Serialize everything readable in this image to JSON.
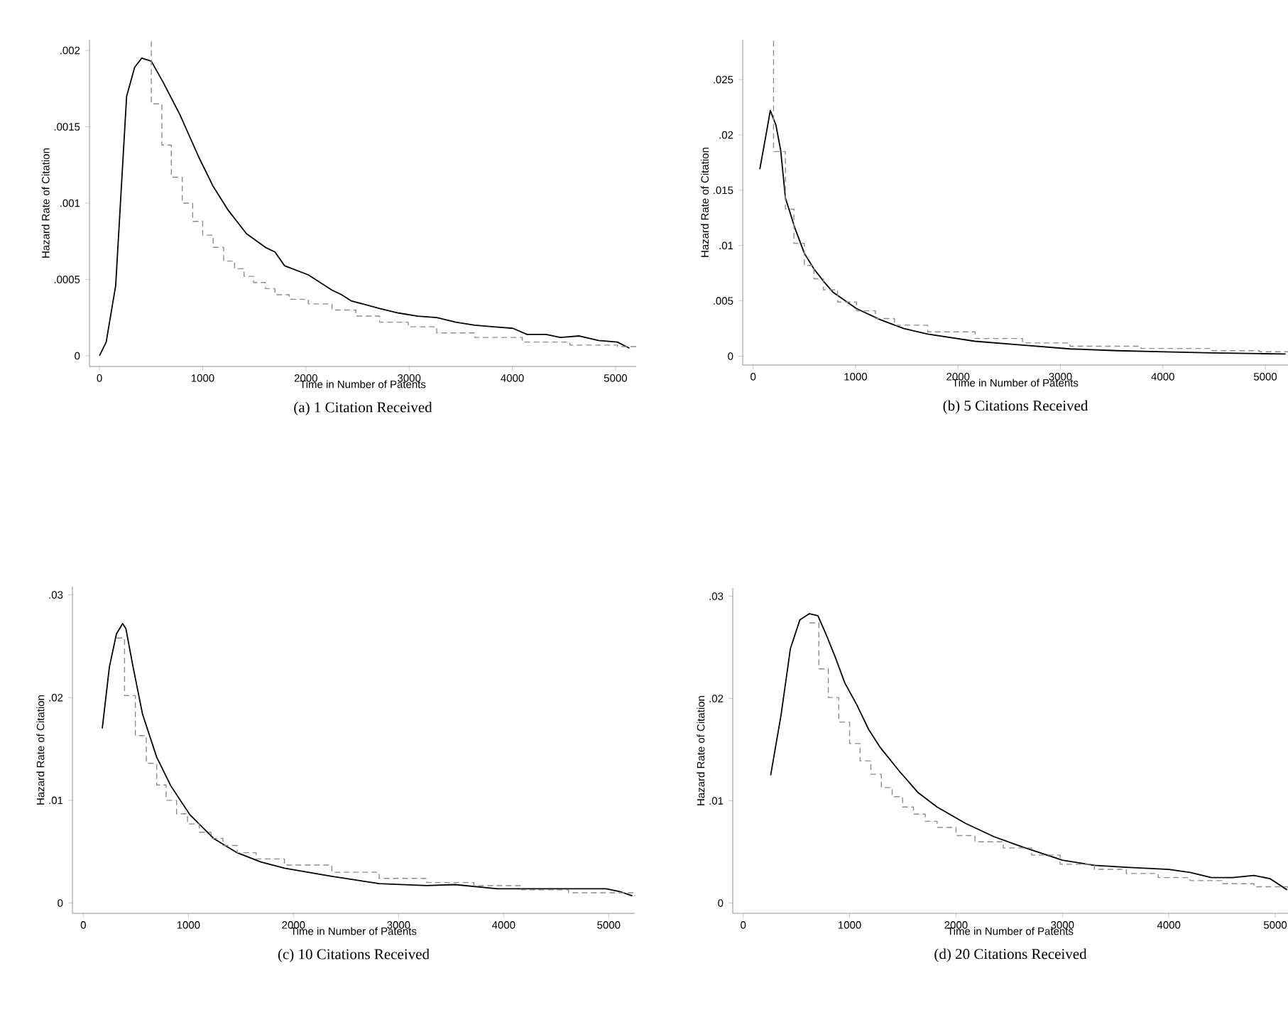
{
  "chart_data": [
    {
      "type": "line",
      "title": "(a) 1 Citation Received",
      "xlabel": "Time in Number of Patents",
      "ylabel": "Hazard Rate of Citation",
      "xlim": [
        -97,
        5200
      ],
      "xticks": [
        0,
        1000,
        2000,
        3000,
        4000,
        5000
      ],
      "ylim": [
        -7e-05,
        0.00207
      ],
      "yticks": [
        {
          "value": 0,
          "label": "0"
        },
        {
          "value": 0.0005,
          "label": ".0005"
        },
        {
          "value": 0.001,
          "label": ".001"
        },
        {
          "value": 0.0015,
          "label": ".0015"
        },
        {
          "value": 0.002,
          "label": ".002"
        }
      ],
      "series": [
        {
          "type": "line",
          "color": "#000000",
          "line_style": "solid",
          "x": [
            0,
            65,
            157,
            263,
            341,
            410,
            502,
            618,
            779,
            963,
            1101,
            1240,
            1424,
            1608,
            1700,
            1793,
            2023,
            2253,
            2346,
            2438,
            2714,
            2899,
            3083,
            3267,
            3452,
            3636,
            3820,
            4005,
            4143,
            4327,
            4465,
            4650,
            4834,
            5018,
            5134
          ],
          "values": [
            0,
            9e-05,
            0.00046,
            0.0017,
            0.00189,
            0.00195,
            0.00193,
            0.00179,
            0.00158,
            0.0013,
            0.00111,
            0.00096,
            0.0008,
            0.00071,
            0.00068,
            0.00059,
            0.00053,
            0.00043,
            0.0004,
            0.00036,
            0.00031,
            0.00028,
            0.00026,
            0.00025,
            0.00022,
            0.0002,
            0.00019,
            0.00018,
            0.00014,
            0.00014,
            0.00012,
            0.00013,
            0.0001,
            9e-05,
            5e-05
          ]
        },
        {
          "type": "step",
          "color": "#8c8c8c",
          "line_style": "dashed",
          "x": [
            502,
            502,
            604,
            696,
            802,
            903,
            1000,
            1101,
            1203,
            1309,
            1401,
            1493,
            1608,
            1700,
            1839,
            2023,
            2253,
            2484,
            2714,
            2991,
            3267,
            3636,
            4097,
            4558,
            5018,
            5200
          ],
          "values": [
            0.00206,
            0.00165,
            0.00138,
            0.00117,
            0.001,
            0.00088,
            0.00079,
            0.00071,
            0.00062,
            0.00057,
            0.00052,
            0.00048,
            0.00044,
            0.0004,
            0.00037,
            0.00034,
            0.0003,
            0.00026,
            0.00022,
            0.00019,
            0.00015,
            0.00012,
            9e-05,
            7e-05,
            6e-05,
            6e-05
          ]
        }
      ]
    },
    {
      "type": "line",
      "title": "(b) 5 Citations Received",
      "xlabel": "Time in Number of Patents",
      "ylabel": "Hazard Rate of Citation",
      "xlim": [
        -102,
        5222
      ],
      "xticks": [
        0,
        1000,
        2000,
        3000,
        4000,
        5000
      ],
      "ylim": [
        -0.0008,
        0.0286
      ],
      "yticks": [
        {
          "value": 0,
          "label": "0"
        },
        {
          "value": 0.005,
          "label": ".005"
        },
        {
          "value": 0.01,
          "label": ".01"
        },
        {
          "value": 0.015,
          "label": ".015"
        },
        {
          "value": 0.02,
          "label": ".02"
        },
        {
          "value": 0.025,
          "label": ".025"
        }
      ],
      "series": [
        {
          "type": "line",
          "color": "#000000",
          "line_style": "solid",
          "x": [
            65,
            139,
            167,
            222,
            269,
            315,
            407,
            500,
            593,
            685,
            778,
            1009,
            1241,
            1472,
            1704,
            2167,
            2630,
            3093,
            3556,
            4019,
            4481,
            4944,
            5199
          ],
          "values": [
            0.0169,
            0.0207,
            0.0222,
            0.0209,
            0.0186,
            0.0143,
            0.0116,
            0.0093,
            0.0079,
            0.0068,
            0.0058,
            0.0043,
            0.0033,
            0.0025,
            0.002,
            0.00135,
            0.001,
            0.00066,
            0.0005,
            0.0004,
            0.0003,
            0.00023,
            0.0002
          ]
        },
        {
          "type": "step",
          "color": "#8c8c8c",
          "line_style": "dashed",
          "x": [
            199,
            199,
            315,
            398,
            500,
            593,
            685,
            824,
            1009,
            1194,
            1380,
            1704,
            2167,
            2630,
            3093,
            3787,
            4481,
            4944,
            5222
          ],
          "values": [
            0.0285,
            0.0185,
            0.0133,
            0.0102,
            0.0082,
            0.007,
            0.006,
            0.0049,
            0.0041,
            0.0034,
            0.0028,
            0.0022,
            0.0016,
            0.0012,
            0.0009,
            0.0007,
            0.0005,
            0.0004,
            0.0004
          ]
        }
      ]
    },
    {
      "type": "line",
      "title": "(c) 10 Citations Received",
      "xlabel": "Time in Number of Patents",
      "ylabel": "Hazard Rate of Citation",
      "xlim": [
        -104,
        5248
      ],
      "xticks": [
        0,
        1000,
        2000,
        3000,
        4000,
        5000
      ],
      "ylim": [
        -0.001,
        0.0308
      ],
      "yticks": [
        {
          "value": 0,
          "label": "0"
        },
        {
          "value": 0.01,
          "label": ".01"
        },
        {
          "value": 0.02,
          "label": ".02"
        },
        {
          "value": 0.03,
          "label": ".03"
        }
      ],
      "series": [
        {
          "type": "line",
          "color": "#000000",
          "line_style": "solid",
          "x": [
            180,
            248,
            315,
            374,
            405,
            473,
            563,
            698,
            833,
            1014,
            1239,
            1464,
            1689,
            1914,
            2365,
            2815,
            3266,
            3536,
            3941,
            4392,
            4977,
            5113,
            5225
          ],
          "values": [
            0.017,
            0.023,
            0.0262,
            0.0272,
            0.0267,
            0.023,
            0.0184,
            0.0142,
            0.0114,
            0.0086,
            0.0063,
            0.0049,
            0.004,
            0.0034,
            0.0026,
            0.0019,
            0.0017,
            0.0018,
            0.0014,
            0.0014,
            0.0014,
            0.0011,
            0.0007
          ]
        },
        {
          "type": "step",
          "color": "#8c8c8c",
          "line_style": "dashed",
          "x": [
            315,
            392,
            495,
            599,
            698,
            788,
            887,
            991,
            1104,
            1216,
            1329,
            1464,
            1644,
            1914,
            2365,
            2815,
            3266,
            3716,
            4167,
            4617,
            5248
          ],
          "values": [
            0.0258,
            0.0202,
            0.0163,
            0.0136,
            0.0115,
            0.01,
            0.0087,
            0.0077,
            0.0069,
            0.0063,
            0.0056,
            0.0049,
            0.0043,
            0.0037,
            0.003,
            0.0024,
            0.002,
            0.0017,
            0.0013,
            0.001,
            0.0007
          ]
        }
      ]
    },
    {
      "type": "line",
      "title": "(d) 20 Citations Received",
      "xlabel": "Time in Number of Patents",
      "ylabel": "Hazard Rate of Citation",
      "xlim": [
        -98,
        5120
      ],
      "xticks": [
        0,
        1000,
        2000,
        3000,
        4000,
        5000
      ],
      "ylim": [
        -0.001,
        0.0308
      ],
      "yticks": [
        {
          "value": 0,
          "label": "0"
        },
        {
          "value": 0.01,
          "label": ".01"
        },
        {
          "value": 0.02,
          "label": ".02"
        },
        {
          "value": 0.03,
          "label": ".03"
        }
      ],
      "series": [
        {
          "type": "line",
          "color": "#000000",
          "line_style": "solid",
          "x": [
            258,
            356,
            444,
            533,
            622,
            702,
            778,
            867,
            956,
            1067,
            1178,
            1289,
            1467,
            1644,
            1822,
            2089,
            2356,
            2622,
            3000,
            3300,
            3600,
            4000,
            4200,
            4400,
            4600,
            4800,
            4950,
            5111
          ],
          "values": [
            0.0125,
            0.0184,
            0.0249,
            0.0277,
            0.0283,
            0.0281,
            0.0263,
            0.024,
            0.0215,
            0.0194,
            0.017,
            0.0152,
            0.0129,
            0.0108,
            0.0094,
            0.0078,
            0.0065,
            0.0055,
            0.0042,
            0.0037,
            0.0035,
            0.0033,
            0.003,
            0.0025,
            0.0025,
            0.0027,
            0.0024,
            0.0013
          ]
        },
        {
          "type": "step",
          "color": "#8c8c8c",
          "line_style": "dashed",
          "x": [
            622,
            711,
            800,
            898,
            1000,
            1098,
            1200,
            1298,
            1400,
            1498,
            1600,
            1711,
            1822,
            2000,
            2178,
            2444,
            2711,
            2978,
            3300,
            3600,
            3900,
            4200,
            4500,
            4800,
            5120
          ],
          "values": [
            0.0274,
            0.0229,
            0.0201,
            0.0177,
            0.0156,
            0.0139,
            0.0126,
            0.0113,
            0.0104,
            0.0094,
            0.0087,
            0.008,
            0.0074,
            0.0066,
            0.006,
            0.0054,
            0.0047,
            0.0038,
            0.0033,
            0.0029,
            0.0025,
            0.0022,
            0.0019,
            0.0016,
            0.0013
          ]
        }
      ]
    }
  ]
}
